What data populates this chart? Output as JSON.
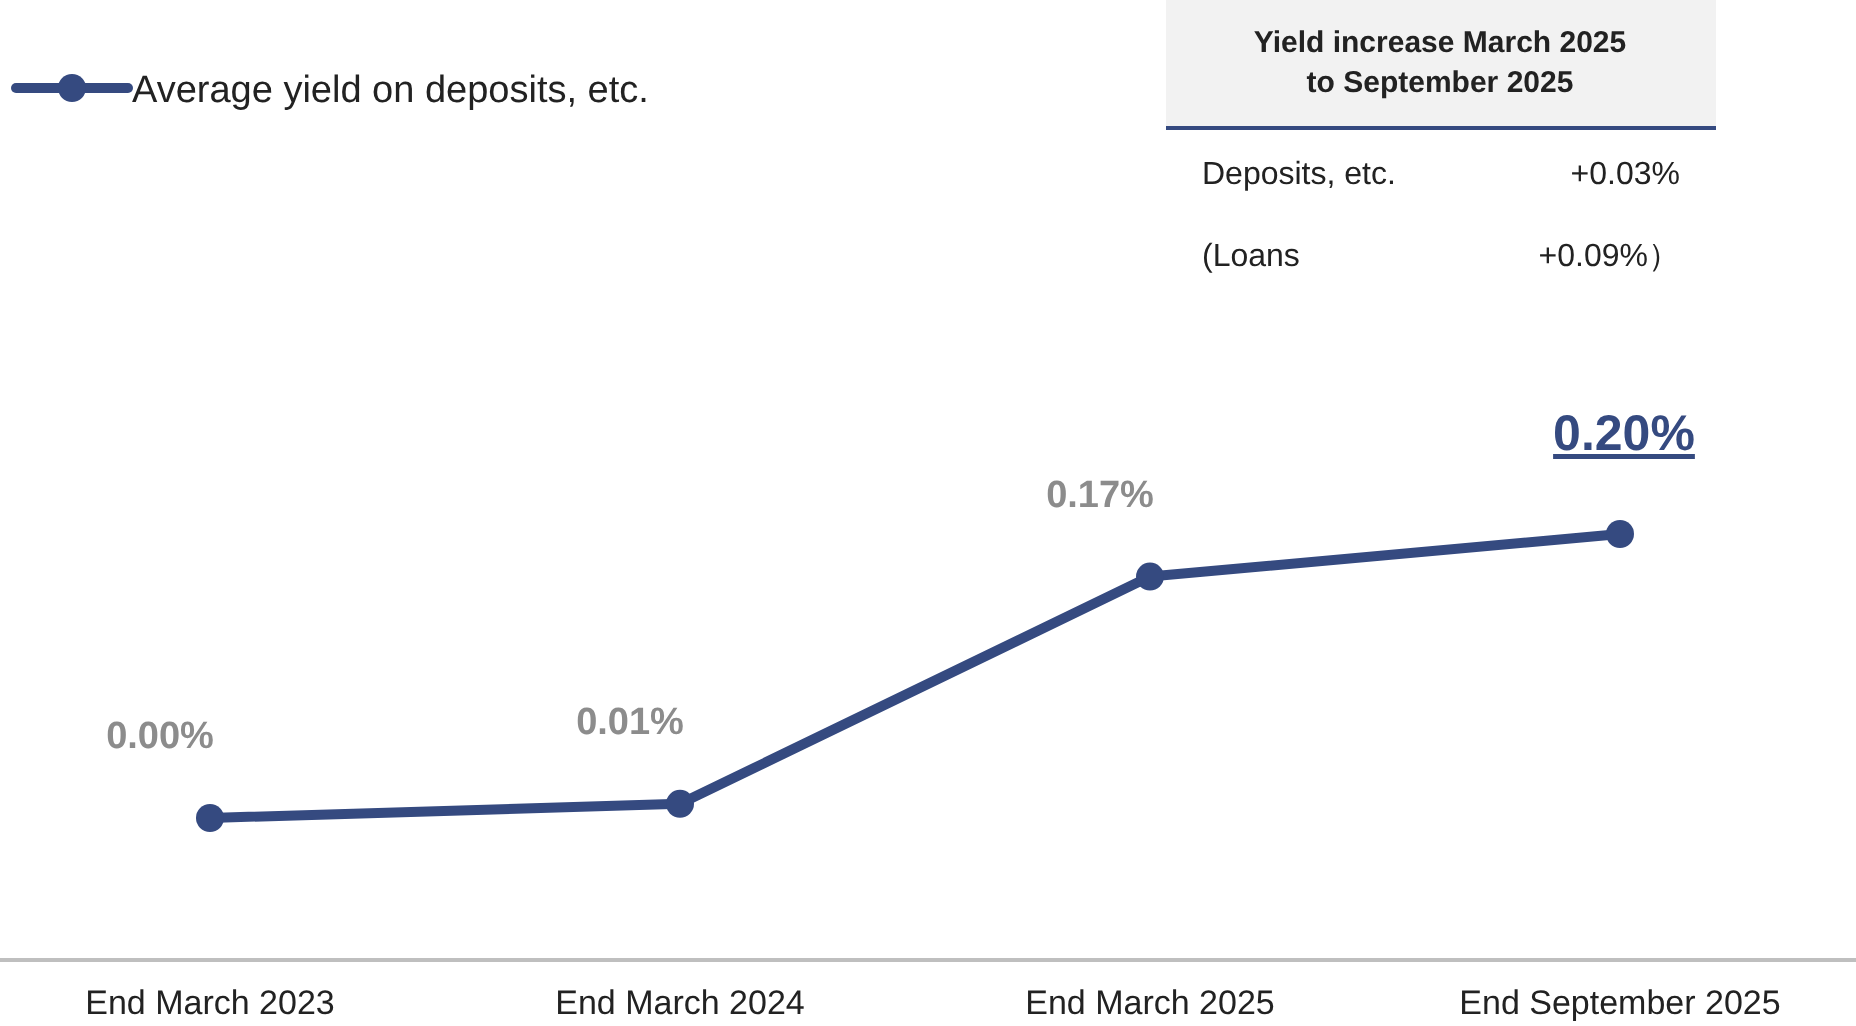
{
  "chart_data": {
    "type": "line",
    "categories": [
      "End March 2023",
      "End March 2024",
      "End March 2025",
      "End September 2025"
    ],
    "series": [
      {
        "name": "Average yield on deposits, etc.",
        "color": "#354a80",
        "values": [
          0.0,
          0.01,
          0.17,
          0.2
        ],
        "value_labels": [
          "0.00%",
          "0.01%",
          "0.17%",
          "0.20%"
        ]
      }
    ],
    "tick_labels": "x",
    "legend": "top left",
    "marker": "circle",
    "line_style": "solid",
    "annotations": [
      "Yield increase March 2025 to September 2025",
      "Deposits, etc.",
      "+0.03%",
      "(Loans",
      "+0.09%）"
    ]
  }
}
